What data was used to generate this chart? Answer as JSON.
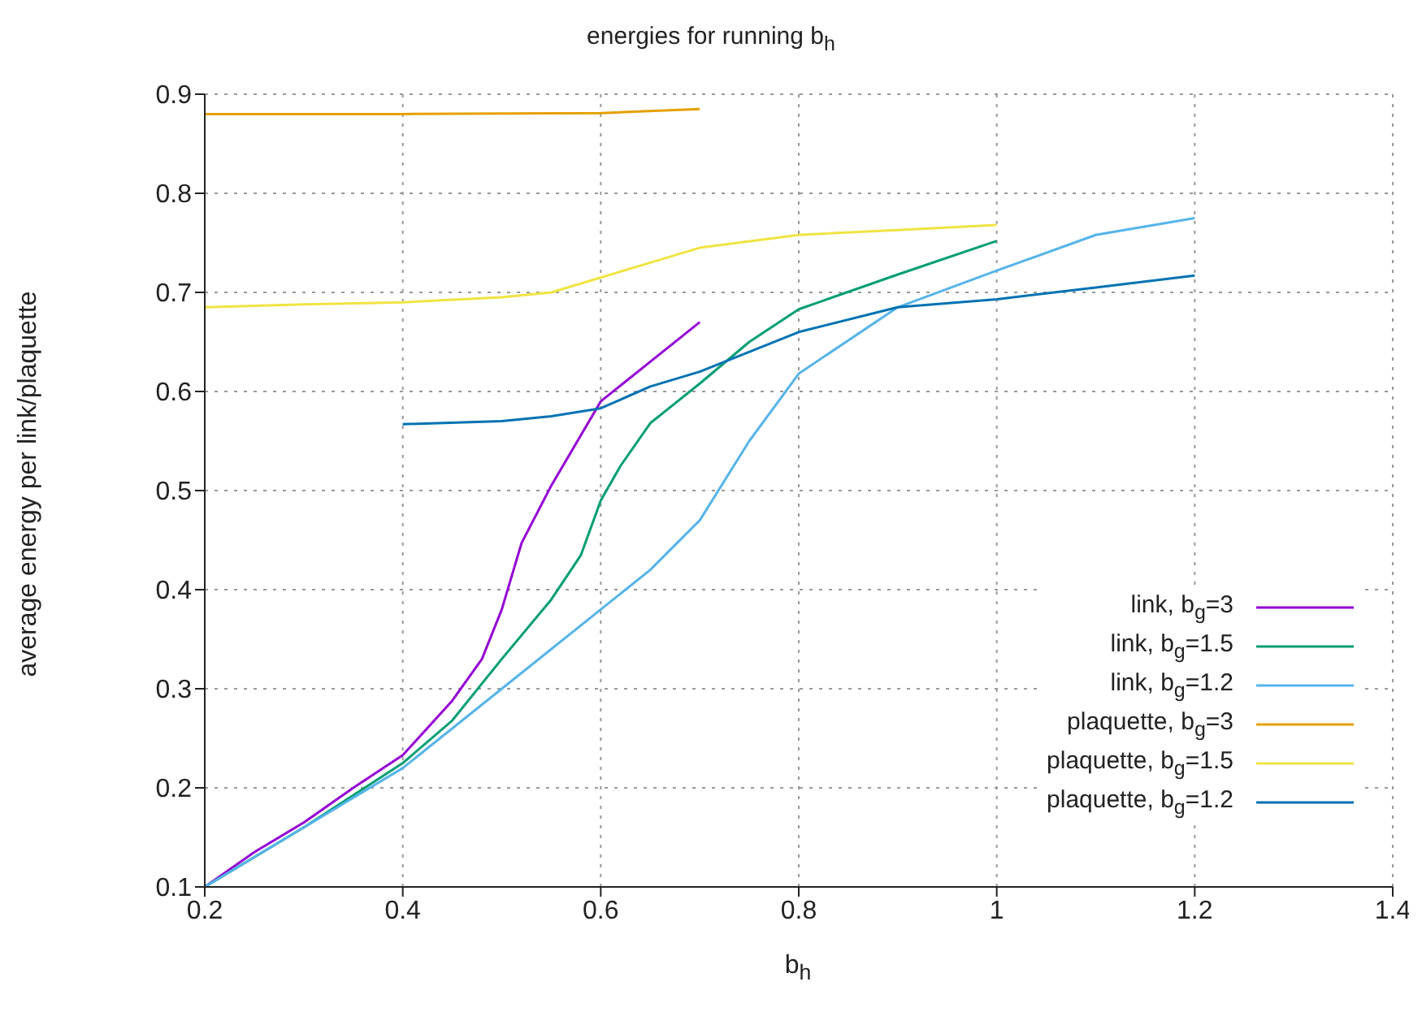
{
  "chart_data": {
    "type": "line",
    "title": "energies for running b$_{h}$",
    "xlabel": "b$_{h}$",
    "ylabel": "average energy per link/plaquette",
    "xlim": [
      0.2,
      1.4
    ],
    "xticks": [
      0.2,
      0.4,
      0.6,
      0.8,
      1,
      1.2,
      1.4
    ],
    "ylim": [
      0.1,
      0.9
    ],
    "yticks": [
      0.1,
      0.2,
      0.3,
      0.4,
      0.5,
      0.6,
      0.7,
      0.8,
      0.9
    ],
    "grid": true,
    "legend": "bottom right",
    "marker": "none",
    "line_style": "solid",
    "series": [
      {
        "name": "link, b$_{g}$=3",
        "color": "#9400d3",
        "x": [
          0.2,
          0.25,
          0.3,
          0.35,
          0.4,
          0.45,
          0.48,
          0.5,
          0.52,
          0.55,
          0.6,
          0.65,
          0.7
        ],
        "values": [
          0.1,
          0.135,
          0.165,
          0.2,
          0.233,
          0.288,
          0.33,
          0.38,
          0.447,
          0.505,
          0.59,
          0.63,
          0.67
        ]
      },
      {
        "name": "link, b$_{g}$=1.5",
        "color": "#009e73",
        "x": [
          0.2,
          0.3,
          0.4,
          0.45,
          0.5,
          0.55,
          0.58,
          0.6,
          0.62,
          0.65,
          0.7,
          0.75,
          0.8,
          0.9,
          1
        ],
        "values": [
          0.1,
          0.16,
          0.225,
          0.268,
          0.33,
          0.39,
          0.435,
          0.49,
          0.525,
          0.568,
          0.608,
          0.65,
          0.683,
          0.718,
          0.752
        ]
      },
      {
        "name": "link, b$_{g}$=1.2",
        "color": "#56b4e9",
        "x": [
          0.2,
          0.3,
          0.4,
          0.5,
          0.6,
          0.65,
          0.7,
          0.75,
          0.8,
          0.9,
          1,
          1.1,
          1.2
        ],
        "values": [
          0.1,
          0.16,
          0.22,
          0.3,
          0.38,
          0.42,
          0.47,
          0.55,
          0.618,
          0.685,
          0.722,
          0.758,
          0.775
        ]
      },
      {
        "name": "plaquette, b$_{g}$=3",
        "color": "#e69f00",
        "x": [
          0.2,
          0.4,
          0.6,
          0.7
        ],
        "values": [
          0.88,
          0.88,
          0.881,
          0.885
        ]
      },
      {
        "name": "plaquette, b$_{g}$=1.5",
        "color": "#f0e442",
        "x": [
          0.2,
          0.3,
          0.4,
          0.5,
          0.55,
          0.6,
          0.65,
          0.7,
          0.8,
          0.9,
          1
        ],
        "values": [
          0.685,
          0.688,
          0.69,
          0.695,
          0.7,
          0.715,
          0.73,
          0.745,
          0.758,
          0.763,
          0.768
        ]
      },
      {
        "name": "plaquette, b$_{g}$=1.2",
        "color": "#0072b2",
        "x": [
          0.4,
          0.5,
          0.55,
          0.6,
          0.65,
          0.7,
          0.8,
          0.9,
          1,
          1.1,
          1.2
        ],
        "values": [
          0.567,
          0.57,
          0.575,
          0.583,
          0.605,
          0.62,
          0.66,
          0.685,
          0.693,
          0.705,
          0.717
        ]
      }
    ]
  }
}
